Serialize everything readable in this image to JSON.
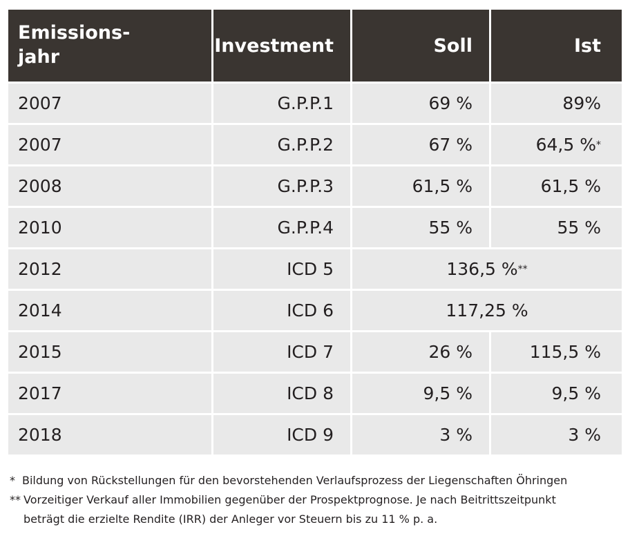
{
  "table": {
    "header": {
      "col1_line1": "Emissions-",
      "col1_line2": "jahr",
      "col2": "Investment",
      "col3": "Soll",
      "col4": "Ist"
    },
    "rows": [
      {
        "jahr": "2007",
        "investment": "G.P.P.1",
        "soll": "69 %",
        "ist": "89%",
        "ist_mark": ""
      },
      {
        "jahr": "2007",
        "investment": "G.P.P.2",
        "soll": "67 %",
        "ist": "64,5 %",
        "ist_mark": "*"
      },
      {
        "jahr": "2008",
        "investment": "G.P.P.3",
        "soll": "61,5 %",
        "ist": "61,5 %",
        "ist_mark": ""
      },
      {
        "jahr": "2010",
        "investment": "G.P.P.4",
        "soll": "55 %",
        "ist": "55 %",
        "ist_mark": ""
      },
      {
        "jahr": "2012",
        "investment": "ICD 5",
        "combined": "136,5 %",
        "combined_mark": "**"
      },
      {
        "jahr": "2014",
        "investment": "ICD 6",
        "combined": "117,25 %",
        "combined_mark": ""
      },
      {
        "jahr": "2015",
        "investment": "ICD 7",
        "soll": "26 %",
        "ist": "115,5 %",
        "ist_mark": ""
      },
      {
        "jahr": "2017",
        "investment": "ICD 8",
        "soll": "9,5 %",
        "ist": "9,5 %",
        "ist_mark": ""
      },
      {
        "jahr": "2018",
        "investment": "ICD 9",
        "soll": "3 %",
        "ist": "3 %",
        "ist_mark": ""
      }
    ]
  },
  "footnotes": [
    {
      "mark": "*",
      "text": "Bildung von Rückstellungen für den bevorstehenden Verlaufsprozess der Liegenschaften Öhringen"
    },
    {
      "mark": "**",
      "text": "Vorzeitiger Verkauf aller Immobilien gegenüber der Prospektprognose. Je nach Beitrittszeitpunkt"
    },
    {
      "mark": "",
      "text": "beträgt die erzielte Rendite (IRR) der Anleger vor Steuern bis zu 11 % p. a."
    }
  ],
  "colors": {
    "header_bg": "#3a3531",
    "row_bg": "#e9e9e9",
    "text": "#231f20"
  }
}
